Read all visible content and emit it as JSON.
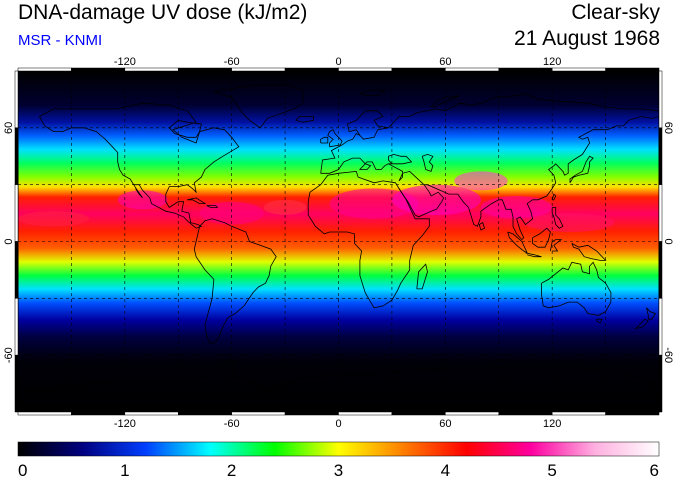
{
  "header": {
    "title": "DNA-damage UV dose (kJ/m2)",
    "source": "MSR - KNMI",
    "condition": "Clear-sky",
    "date": "21 August 1968"
  },
  "map": {
    "projection": "equirectangular",
    "lon_range": [
      -180,
      180
    ],
    "lat_range": [
      -90,
      90
    ],
    "lon_ticks": [
      -120,
      -60,
      0,
      60,
      120
    ],
    "lat_ticks": [
      -60,
      0,
      60
    ],
    "lon_tick_labels": [
      "-120",
      "-60",
      "0",
      "60",
      "120"
    ],
    "lat_tick_labels": [
      "-60",
      "0",
      "60"
    ],
    "grid_lon_spacing": 30,
    "grid_lat_spacing": 30,
    "grid_style": "dashed",
    "coastlines": true,
    "peak_band_lat": [
      5,
      35
    ],
    "colors": {
      "grid": "#000000",
      "coast": "#000000"
    }
  },
  "colorbar": {
    "range": [
      0,
      6
    ],
    "tick_values": [
      0,
      1,
      2,
      3,
      4,
      5,
      6
    ],
    "tick_labels": [
      "0",
      "1",
      "2",
      "3",
      "4",
      "5",
      "6"
    ],
    "stops": [
      "#000000",
      "#000080",
      "#0040ff",
      "#00ffff",
      "#00ff00",
      "#ffff00",
      "#ff8000",
      "#ff0000",
      "#ff00a0",
      "#ffb0e0",
      "#ffffff"
    ]
  }
}
